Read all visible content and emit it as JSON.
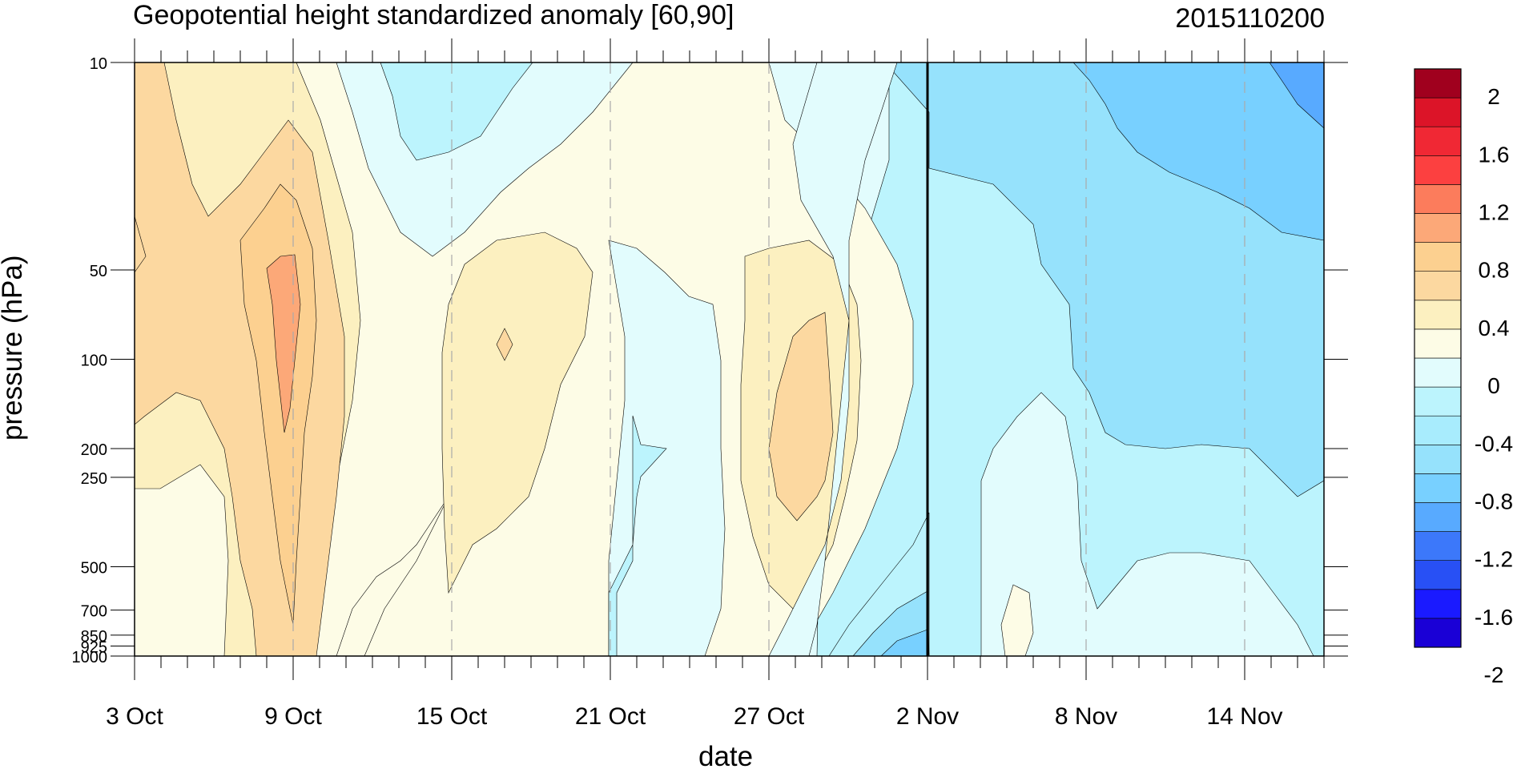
{
  "title": "Geopotential height standardized anomaly [60,90]",
  "date_label": "2015110200",
  "chart_data": {
    "type": "heatmap",
    "subtype": "filled-contour",
    "title": "Geopotential height standardized anomaly [60,90]",
    "annotation": "2015110200",
    "xlabel": "date",
    "ylabel": "pressure (hPa)",
    "x_ticks": [
      "3 Oct",
      "9 Oct",
      "15 Oct",
      "21 Oct",
      "27 Oct",
      "2 Nov",
      "8 Nov",
      "14 Nov"
    ],
    "x_range": [
      "2015-10-03",
      "2015-11-17"
    ],
    "y_ticks": [
      10,
      50,
      100,
      200,
      250,
      500,
      700,
      850,
      925,
      1000
    ],
    "y_scale": "log",
    "y_reversed": true,
    "vertical_marker": "2 Nov",
    "colorbar": {
      "labels": [
        "2",
        "1.6",
        "1.2",
        "0.8",
        "0.4",
        "0",
        "-0.4",
        "-0.8",
        "-1.2",
        "-1.6",
        "-2"
      ],
      "levels": [
        -2.2,
        -2.0,
        -1.8,
        -1.6,
        -1.4,
        -1.2,
        -1.0,
        -0.8,
        -0.6,
        -0.4,
        -0.2,
        0.0,
        0.2,
        0.4,
        0.6,
        0.8,
        1.0,
        1.2,
        1.4,
        1.6,
        1.8,
        2.0,
        2.2
      ],
      "colors": [
        "#1a00d6",
        "#1a1aff",
        "#2850f5",
        "#3c78fa",
        "#58aaff",
        "#78d0ff",
        "#96e2fc",
        "#a8ecfd",
        "#bcf4fd",
        "#e2fcfd",
        "#fdfce6",
        "#fcf0c0",
        "#fcd8a0",
        "#fcd090",
        "#fca878",
        "#fc7c5c",
        "#fc4040",
        "#f02834",
        "#dc1428",
        "#a0001e"
      ],
      "position": "right"
    },
    "grid": "dashed vertical at date ticks",
    "regions": [
      {
        "desc": "warm anomaly 3-12 Oct, peak ~0.9 near 9 Oct 50-150 hPa",
        "max": 0.9
      },
      {
        "desc": "cool anomaly 14-18 Oct upper levels 10-30 hPa",
        "min": -0.3
      },
      {
        "desc": "warm anomaly 15-20 Oct mid levels, ~0.4-0.6",
        "max": 0.6
      },
      {
        "desc": "warm anomaly 26-31 Oct, peak ~0.7 near 28 Oct 100-300 hPa",
        "max": 0.7
      },
      {
        "desc": "cold anomaly after 1 Nov deepening to ~-1.2 at 10 hPa by 17 Nov",
        "min": -1.2
      }
    ]
  }
}
